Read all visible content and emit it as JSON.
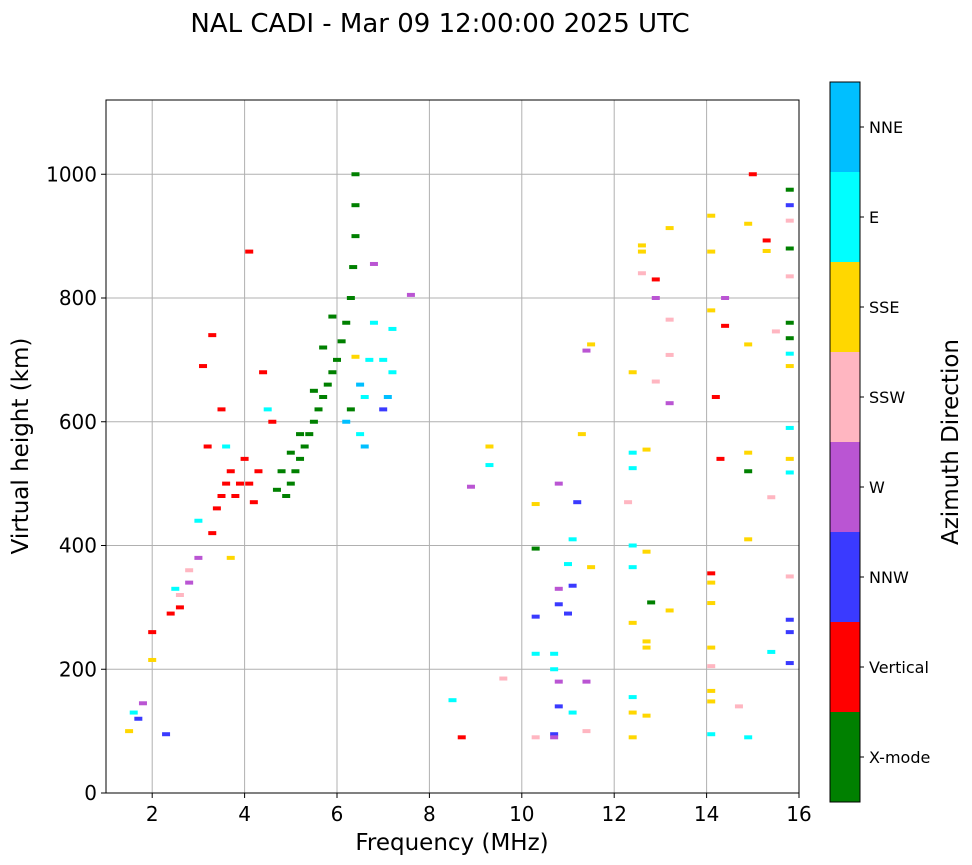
{
  "chart_data": {
    "type": "scatter",
    "title": "NAL CADI - Mar 09 12:00:00 2025 UTC",
    "xlabel": "Frequency (MHz)",
    "ylabel": "Virtual height (km)",
    "xlim": [
      1,
      16
    ],
    "ylim": [
      0,
      1120
    ],
    "xticks": [
      2,
      4,
      6,
      8,
      10,
      12,
      14,
      16
    ],
    "yticks": [
      0,
      200,
      400,
      600,
      800,
      1000
    ],
    "grid": true,
    "colorbar": {
      "title": "Azimuth Direction",
      "categories": [
        "X-mode",
        "Vertical",
        "NNW",
        "W",
        "SSW",
        "SSE",
        "E",
        "NNE"
      ],
      "colors": [
        "#008000",
        "#ff0000",
        "#3a3aff",
        "#ba55d3",
        "#ffb6c1",
        "#ffd700",
        "#00ffff",
        "#00bfff"
      ]
    },
    "series": [
      {
        "name": "X-mode",
        "points": [
          [
            4.9,
            480
          ],
          [
            5.0,
            500
          ],
          [
            5.1,
            520
          ],
          [
            5.2,
            540
          ],
          [
            5.3,
            560
          ],
          [
            5.4,
            580
          ],
          [
            5.5,
            600
          ],
          [
            5.6,
            620
          ],
          [
            5.7,
            640
          ],
          [
            5.8,
            660
          ],
          [
            5.9,
            680
          ],
          [
            6.0,
            700
          ],
          [
            6.1,
            730
          ],
          [
            6.2,
            760
          ],
          [
            6.3,
            800
          ],
          [
            6.35,
            850
          ],
          [
            6.4,
            900
          ],
          [
            6.4,
            950
          ],
          [
            6.4,
            1000
          ],
          [
            4.7,
            490
          ],
          [
            4.8,
            520
          ],
          [
            5.0,
            550
          ],
          [
            5.2,
            580
          ],
          [
            5.5,
            650
          ],
          [
            5.7,
            720
          ],
          [
            5.9,
            770
          ],
          [
            6.3,
            620
          ],
          [
            10.3,
            395
          ],
          [
            12.8,
            308
          ],
          [
            14.9,
            520
          ],
          [
            15.8,
            880
          ],
          [
            15.8,
            975
          ],
          [
            15.8,
            760
          ],
          [
            15.8,
            735
          ]
        ]
      },
      {
        "name": "Vertical",
        "points": [
          [
            3.3,
            420
          ],
          [
            3.4,
            460
          ],
          [
            3.5,
            480
          ],
          [
            3.6,
            500
          ],
          [
            3.7,
            520
          ],
          [
            3.8,
            480
          ],
          [
            3.9,
            500
          ],
          [
            4.0,
            540
          ],
          [
            4.1,
            500
          ],
          [
            4.2,
            470
          ],
          [
            4.3,
            520
          ],
          [
            3.3,
            740
          ],
          [
            3.1,
            690
          ],
          [
            3.2,
            560
          ],
          [
            3.5,
            620
          ],
          [
            4.4,
            680
          ],
          [
            4.6,
            600
          ],
          [
            4.1,
            875
          ],
          [
            2.6,
            300
          ],
          [
            2.4,
            290
          ],
          [
            2.0,
            260
          ],
          [
            14.4,
            755
          ],
          [
            14.2,
            640
          ],
          [
            14.3,
            540
          ],
          [
            14.1,
            355
          ],
          [
            15.3,
            893
          ],
          [
            15.0,
            1000
          ],
          [
            12.9,
            830
          ],
          [
            8.7,
            90
          ]
        ]
      },
      {
        "name": "NNW",
        "points": [
          [
            2.3,
            95
          ],
          [
            1.7,
            120
          ],
          [
            10.3,
            285
          ],
          [
            10.8,
            305
          ],
          [
            11.1,
            335
          ],
          [
            11.0,
            290
          ],
          [
            11.2,
            470
          ],
          [
            10.8,
            140
          ],
          [
            10.7,
            95
          ],
          [
            7.0,
            620
          ],
          [
            15.8,
            280
          ],
          [
            15.8,
            260
          ],
          [
            15.8,
            210
          ],
          [
            15.8,
            950
          ]
        ]
      },
      {
        "name": "W",
        "points": [
          [
            2.8,
            340
          ],
          [
            3.0,
            380
          ],
          [
            1.8,
            145
          ],
          [
            6.8,
            855
          ],
          [
            7.6,
            805
          ],
          [
            8.9,
            495
          ],
          [
            10.8,
            500
          ],
          [
            10.8,
            330
          ],
          [
            10.8,
            180
          ],
          [
            11.4,
            180
          ],
          [
            12.9,
            800
          ],
          [
            13.2,
            630
          ],
          [
            14.4,
            800
          ],
          [
            10.7,
            90
          ],
          [
            11.4,
            715
          ]
        ]
      },
      {
        "name": "SSW",
        "points": [
          [
            2.6,
            320
          ],
          [
            2.8,
            360
          ],
          [
            9.6,
            185
          ],
          [
            11.4,
            100
          ],
          [
            12.3,
            470
          ],
          [
            12.6,
            840
          ],
          [
            12.9,
            665
          ],
          [
            13.2,
            765
          ],
          [
            13.2,
            708
          ],
          [
            14.1,
            205
          ],
          [
            14.7,
            140
          ],
          [
            15.4,
            478
          ],
          [
            15.5,
            746
          ],
          [
            15.8,
            925
          ],
          [
            15.8,
            835
          ],
          [
            15.8,
            350
          ],
          [
            10.3,
            90
          ]
        ]
      },
      {
        "name": "SSE",
        "points": [
          [
            1.5,
            100
          ],
          [
            2.0,
            215
          ],
          [
            3.7,
            380
          ],
          [
            6.4,
            705
          ],
          [
            9.3,
            560
          ],
          [
            10.3,
            467
          ],
          [
            11.3,
            580
          ],
          [
            11.5,
            725
          ],
          [
            11.5,
            365
          ],
          [
            12.4,
            680
          ],
          [
            12.4,
            275
          ],
          [
            12.4,
            130
          ],
          [
            12.4,
            90
          ],
          [
            12.6,
            885
          ],
          [
            12.6,
            875
          ],
          [
            12.7,
            555
          ],
          [
            12.7,
            390
          ],
          [
            12.7,
            245
          ],
          [
            12.7,
            235
          ],
          [
            12.7,
            125
          ],
          [
            13.2,
            913
          ],
          [
            13.2,
            295
          ],
          [
            14.1,
            933
          ],
          [
            14.1,
            875
          ],
          [
            14.1,
            780
          ],
          [
            14.1,
            340
          ],
          [
            14.1,
            307
          ],
          [
            14.1,
            235
          ],
          [
            14.1,
            165
          ],
          [
            14.1,
            148
          ],
          [
            14.9,
            920
          ],
          [
            14.9,
            725
          ],
          [
            14.9,
            550
          ],
          [
            14.9,
            410
          ],
          [
            15.3,
            876
          ],
          [
            15.8,
            540
          ],
          [
            15.8,
            690
          ]
        ]
      },
      {
        "name": "E",
        "points": [
          [
            1.6,
            130
          ],
          [
            2.5,
            330
          ],
          [
            3.0,
            440
          ],
          [
            3.6,
            560
          ],
          [
            4.5,
            620
          ],
          [
            6.5,
            580
          ],
          [
            6.6,
            640
          ],
          [
            6.7,
            700
          ],
          [
            6.8,
            760
          ],
          [
            7.0,
            700
          ],
          [
            7.2,
            680
          ],
          [
            7.2,
            750
          ],
          [
            9.3,
            530
          ],
          [
            8.5,
            150
          ],
          [
            10.3,
            225
          ],
          [
            10.7,
            225
          ],
          [
            10.7,
            200
          ],
          [
            11.0,
            370
          ],
          [
            11.1,
            410
          ],
          [
            11.1,
            130
          ],
          [
            12.4,
            550
          ],
          [
            12.4,
            525
          ],
          [
            12.4,
            400
          ],
          [
            12.4,
            365
          ],
          [
            12.4,
            155
          ],
          [
            14.1,
            95
          ],
          [
            14.9,
            90
          ],
          [
            15.4,
            228
          ],
          [
            15.8,
            710
          ],
          [
            15.8,
            590
          ],
          [
            15.8,
            518
          ]
        ]
      },
      {
        "name": "NNE",
        "points": [
          [
            6.5,
            660
          ],
          [
            6.6,
            560
          ],
          [
            7.1,
            640
          ],
          [
            6.2,
            600
          ]
        ]
      }
    ]
  }
}
